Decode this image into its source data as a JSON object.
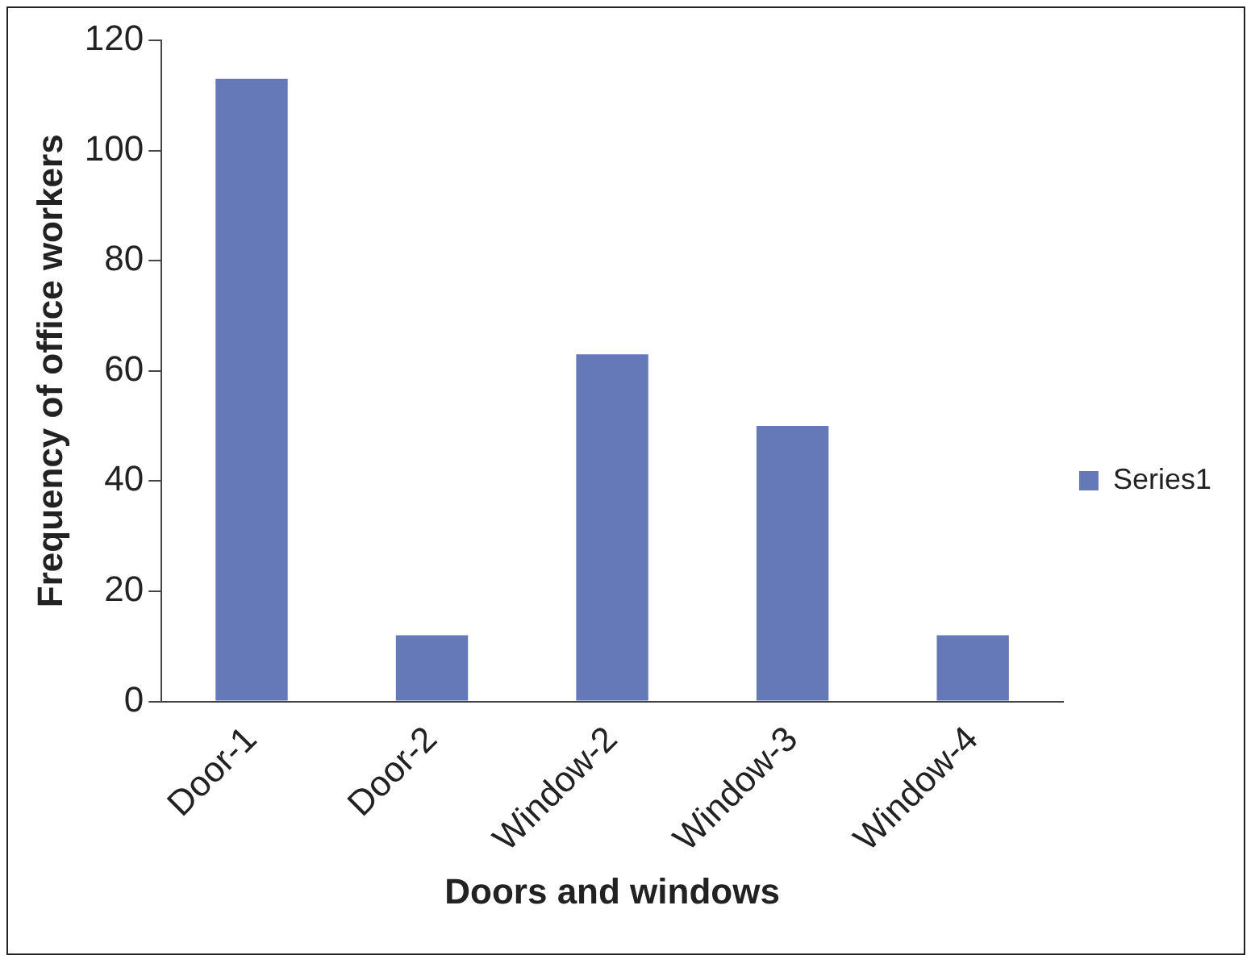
{
  "chart_data": {
    "type": "bar",
    "xlabel": "Doors and windows",
    "ylabel": "Frequency of office workers",
    "categories": [
      "Door-1",
      "Door-2",
      "Window-2",
      "Window-3",
      "Window-4"
    ],
    "series": [
      {
        "name": "Series1",
        "color": "#6579b9",
        "values": [
          113,
          12,
          63,
          50,
          12
        ]
      }
    ],
    "ylim": [
      0,
      120
    ],
    "yticks": [
      0,
      20,
      40,
      60,
      80,
      100,
      120
    ],
    "grid": false,
    "legend": "right"
  }
}
